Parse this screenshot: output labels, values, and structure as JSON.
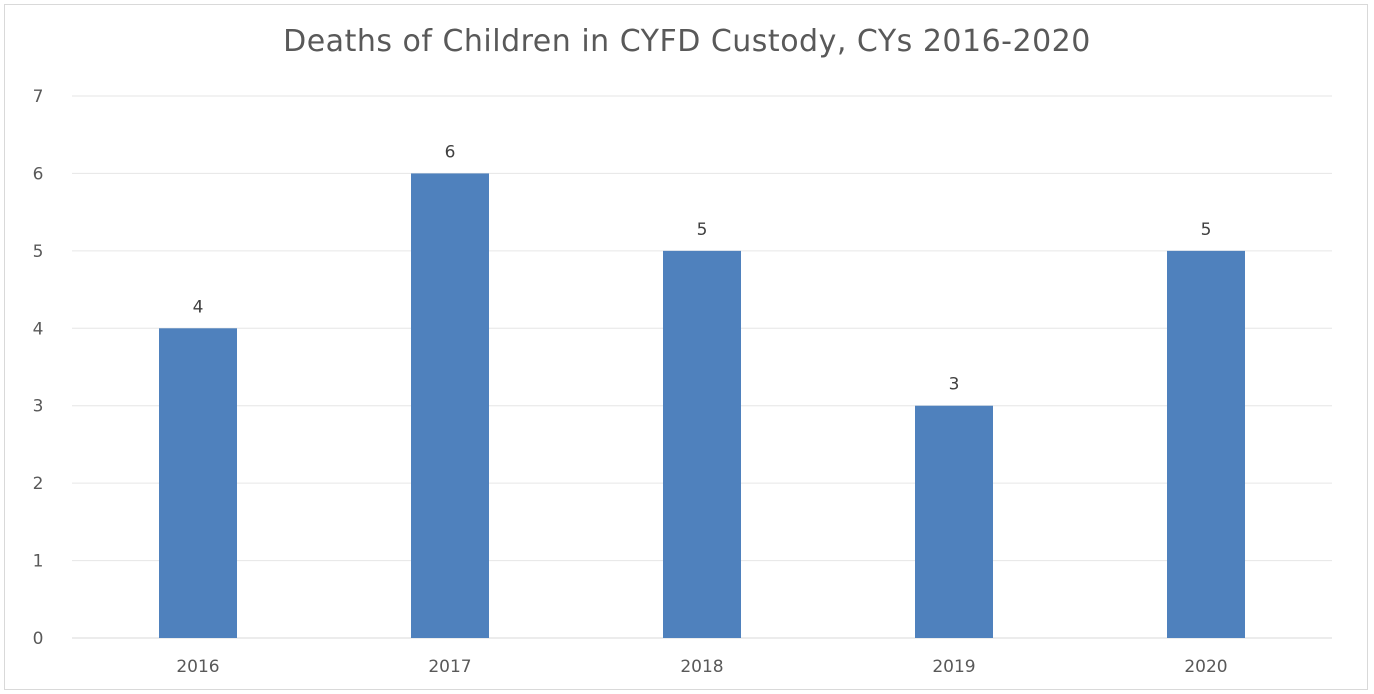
{
  "chart_data": {
    "type": "bar",
    "title": "Deaths of Children in CYFD Custody, CYs 2016-2020",
    "xlabel": "",
    "ylabel": "",
    "categories": [
      "2016",
      "2017",
      "2018",
      "2019",
      "2020"
    ],
    "values": [
      4,
      6,
      5,
      3,
      5
    ],
    "ylim": [
      0,
      7
    ],
    "y_ticks": [
      0,
      1,
      2,
      3,
      4,
      5,
      6,
      7
    ],
    "data_labels": true,
    "grid": true,
    "legend": "none",
    "bar_color": "#4f81bd",
    "gridline_color": "#e6e6e6"
  }
}
